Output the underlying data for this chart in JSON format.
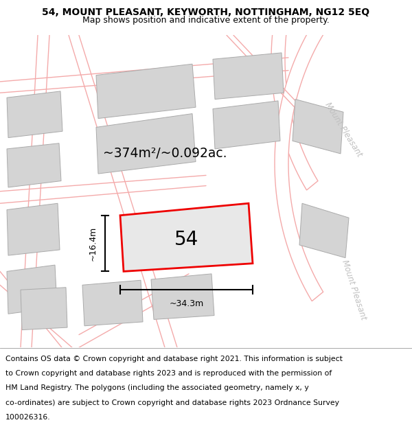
{
  "title_line1": "54, MOUNT PLEASANT, KEYWORTH, NOTTINGHAM, NG12 5EQ",
  "title_line2": "Map shows position and indicative extent of the property.",
  "map_bg": "#f7f7f7",
  "building_color": "#d4d4d4",
  "building_edge": "#aaaaaa",
  "road_line_color": "#f4aaaa",
  "road_bg": "#ffffff",
  "plot_outline_color": "#ee0000",
  "plot_fill_color": "#e8e8e8",
  "area_text": "~374m²/~0.092ac.",
  "plot_number": "54",
  "dim_width": "~34.3m",
  "dim_height": "~16.4m",
  "street_label": "Mount Pleasant",
  "title_fontsize": 10,
  "subtitle_fontsize": 9,
  "footer_fontsize": 7.8,
  "footer_lines": [
    "Contains OS data © Crown copyright and database right 2021. This information is subject",
    "to Crown copyright and database rights 2023 and is reproduced with the permission of",
    "HM Land Registry. The polygons (including the associated geometry, namely x, y",
    "co-ordinates) are subject to Crown copyright and database rights 2023 Ordnance Survey",
    "100026316."
  ]
}
